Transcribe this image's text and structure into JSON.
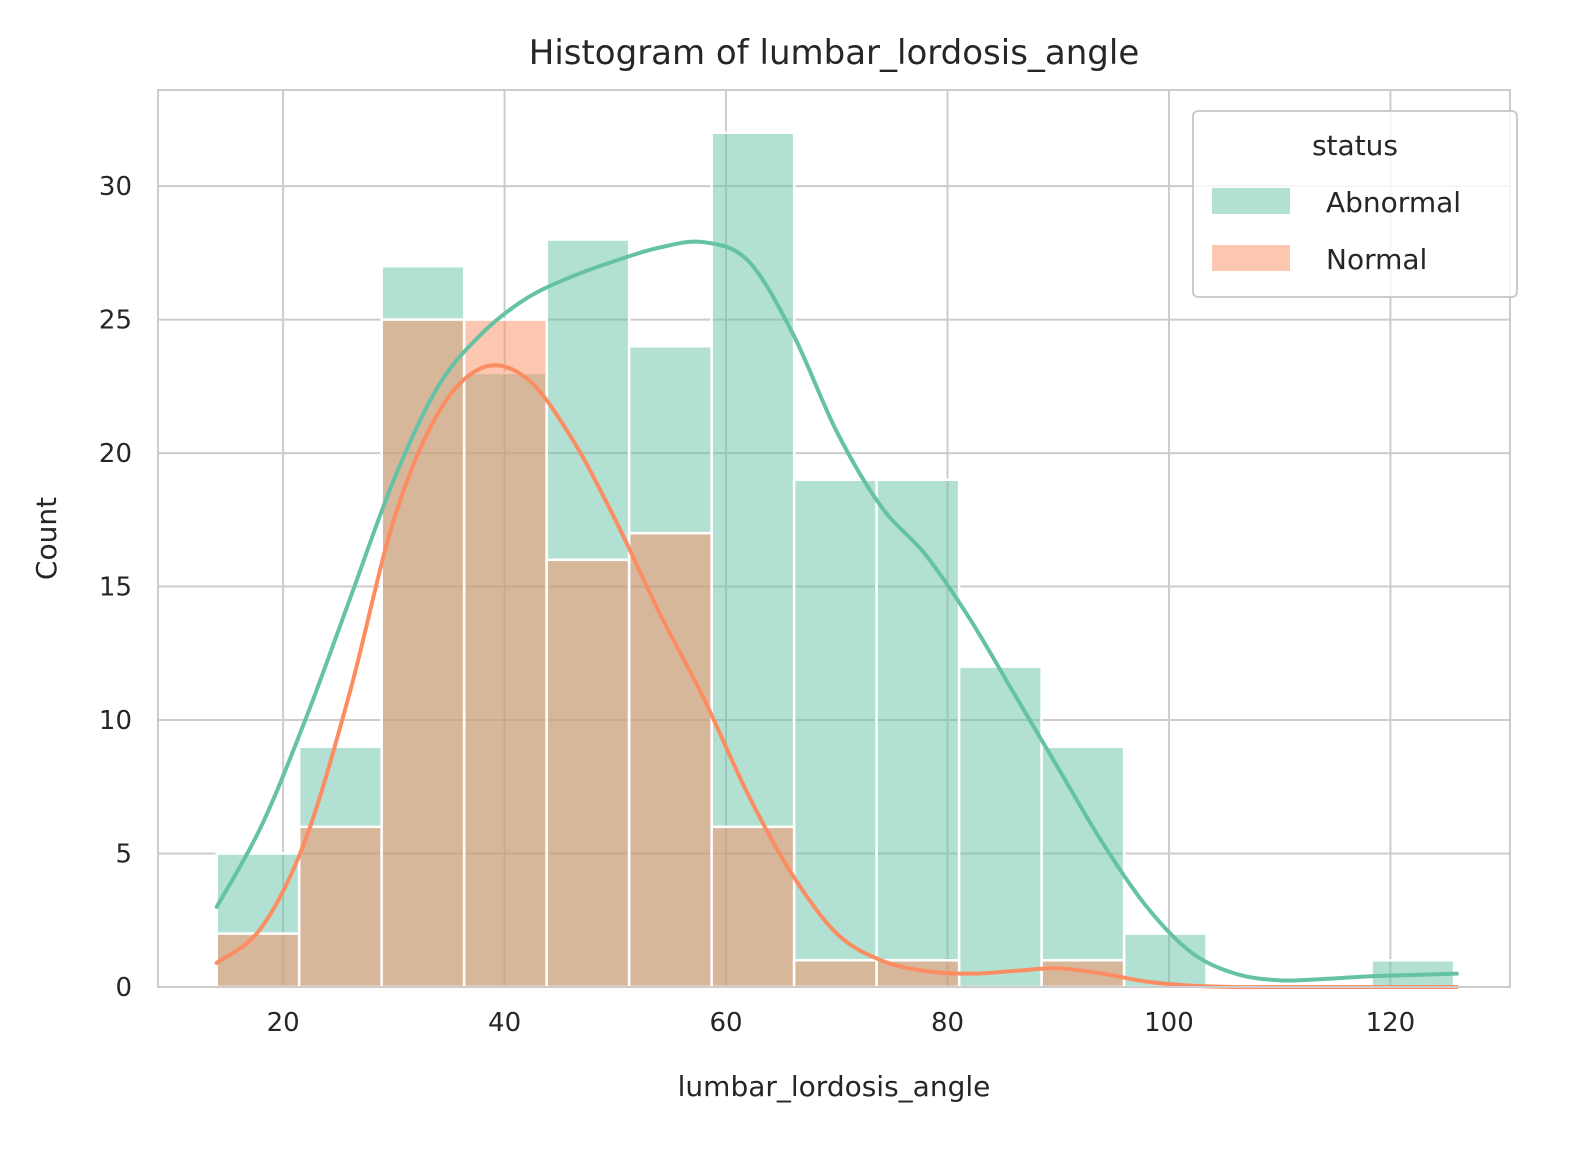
{
  "chart_data": {
    "type": "bar",
    "title": "Histogram of lumbar_lordosis_angle",
    "xlabel": "lumbar_lordosis_angle",
    "ylabel": "Count",
    "xlim": [
      8.7,
      130.8
    ],
    "ylim": [
      0,
      33.6
    ],
    "xticks": [
      20,
      40,
      60,
      80,
      100,
      120
    ],
    "yticks": [
      0,
      5,
      10,
      15,
      20,
      25,
      30
    ],
    "grid": true,
    "bin_edges": [
      14.0,
      21.45,
      28.9,
      36.35,
      43.8,
      51.25,
      58.7,
      66.15,
      73.6,
      81.05,
      88.5,
      95.95,
      103.4,
      110.85,
      118.3,
      125.75
    ],
    "legend": {
      "title": "status",
      "position": "upper right"
    },
    "series": [
      {
        "name": "Abnormal",
        "color": "#66c2a5",
        "values": [
          5,
          9,
          27,
          23,
          28,
          24,
          32,
          19,
          19,
          12,
          9,
          2,
          0,
          0,
          1
        ],
        "kde": {
          "x": [
            14,
            18,
            22,
            26,
            30,
            34,
            38,
            42,
            46,
            50,
            54,
            58,
            62,
            66,
            70,
            74,
            78,
            82,
            86,
            90,
            94,
            98,
            102,
            106,
            110,
            114,
            118,
            122,
            126
          ],
          "y": [
            3.0,
            6.0,
            10.0,
            14.5,
            19.0,
            22.5,
            24.5,
            25.8,
            26.6,
            27.2,
            27.7,
            27.9,
            27.2,
            24.5,
            20.8,
            18.0,
            16.2,
            13.8,
            11.0,
            8.2,
            5.4,
            3.0,
            1.3,
            0.5,
            0.25,
            0.3,
            0.4,
            0.45,
            0.5
          ]
        }
      },
      {
        "name": "Normal",
        "color": "#fc8d62",
        "values": [
          2,
          6,
          25,
          25,
          16,
          17,
          6,
          1,
          1,
          0,
          1,
          0,
          0,
          0,
          0
        ],
        "kde": {
          "x": [
            14,
            18,
            22,
            26,
            30,
            34,
            38,
            42,
            46,
            50,
            54,
            58,
            62,
            66,
            70,
            74,
            78,
            82,
            86,
            90,
            94,
            98,
            102,
            106,
            110,
            114,
            118,
            122,
            126
          ],
          "y": [
            0.9,
            2.2,
            5.5,
            11.0,
            17.5,
            21.5,
            23.2,
            22.8,
            20.6,
            17.5,
            14.0,
            10.8,
            7.2,
            4.2,
            2.0,
            1.0,
            0.6,
            0.5,
            0.6,
            0.7,
            0.5,
            0.2,
            0.05,
            0.0,
            0.0,
            0.0,
            0.0,
            0.0,
            0.0
          ]
        }
      }
    ]
  }
}
